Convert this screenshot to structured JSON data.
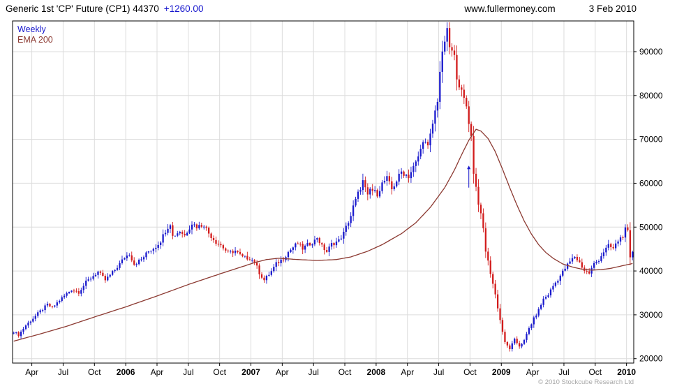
{
  "header": {
    "title": "Generic 1st 'CP' Future (CP1) 44370",
    "change": "+1260.00",
    "website": "www.fullermoney.com",
    "date": "3 Feb 2010"
  },
  "footer": {
    "copyright": "© 2010 Stockcube Research Ltd"
  },
  "chart_data": {
    "type": "candlestick",
    "title": "Generic 1st 'CP' Future (CP1)",
    "last_price": 44370,
    "change": 1260.0,
    "interval": "Weekly",
    "overlay": "EMA 200",
    "legend": [
      {
        "label": "Weekly",
        "color_key": "up"
      },
      {
        "label": "EMA 200",
        "color_key": "ema"
      }
    ],
    "ylim": [
      19000,
      97000
    ],
    "y_ticks": [
      20000,
      30000,
      40000,
      50000,
      60000,
      70000,
      80000,
      90000
    ],
    "weeks": 258,
    "x_ticks": [
      {
        "week": 8,
        "label": "Apr",
        "bold": false
      },
      {
        "week": 21,
        "label": "Jul",
        "bold": false
      },
      {
        "week": 34,
        "label": "Oct",
        "bold": false
      },
      {
        "week": 47,
        "label": "2006",
        "bold": true
      },
      {
        "week": 60,
        "label": "Apr",
        "bold": false
      },
      {
        "week": 73,
        "label": "Jul",
        "bold": false
      },
      {
        "week": 86,
        "label": "Oct",
        "bold": false
      },
      {
        "week": 99,
        "label": "2007",
        "bold": true
      },
      {
        "week": 112,
        "label": "Apr",
        "bold": false
      },
      {
        "week": 125,
        "label": "Jul",
        "bold": false
      },
      {
        "week": 138,
        "label": "Oct",
        "bold": false
      },
      {
        "week": 151,
        "label": "2008",
        "bold": true
      },
      {
        "week": 164,
        "label": "Apr",
        "bold": false
      },
      {
        "week": 177,
        "label": "Jul",
        "bold": false
      },
      {
        "week": 190,
        "label": "Oct",
        "bold": false
      },
      {
        "week": 203,
        "label": "2009",
        "bold": true
      },
      {
        "week": 216,
        "label": "Apr",
        "bold": false
      },
      {
        "week": 229,
        "label": "Jul",
        "bold": false
      },
      {
        "week": 242,
        "label": "Oct",
        "bold": false
      },
      {
        "week": 255,
        "label": "2010",
        "bold": true
      }
    ],
    "series": {
      "close_anchors": [
        [
          0,
          26200
        ],
        [
          2,
          25400
        ],
        [
          5,
          27600
        ],
        [
          8,
          29200
        ],
        [
          11,
          30800
        ],
        [
          14,
          32300
        ],
        [
          16,
          31600
        ],
        [
          19,
          33300
        ],
        [
          21,
          34300
        ],
        [
          24,
          35800
        ],
        [
          27,
          35200
        ],
        [
          30,
          37400
        ],
        [
          33,
          38900
        ],
        [
          35,
          39800
        ],
        [
          38,
          37900
        ],
        [
          41,
          39600
        ],
        [
          44,
          41600
        ],
        [
          46,
          43100
        ],
        [
          48,
          43900
        ],
        [
          50,
          41600
        ],
        [
          53,
          42600
        ],
        [
          56,
          44500
        ],
        [
          59,
          45600
        ],
        [
          61,
          46900
        ],
        [
          63,
          49200
        ],
        [
          65,
          50900
        ],
        [
          66,
          47900
        ],
        [
          69,
          49100
        ],
        [
          71,
          48100
        ],
        [
          74,
          50900
        ],
        [
          76,
          50100
        ],
        [
          79,
          50600
        ],
        [
          81,
          48600
        ],
        [
          84,
          46600
        ],
        [
          86,
          45900
        ],
        [
          89,
          44100
        ],
        [
          92,
          44600
        ],
        [
          95,
          43100
        ],
        [
          98,
          42900
        ],
        [
          100,
          42100
        ],
        [
          102,
          39600
        ],
        [
          104,
          37900
        ],
        [
          107,
          39900
        ],
        [
          109,
          41600
        ],
        [
          112,
          42900
        ],
        [
          114,
          44300
        ],
        [
          116,
          45400
        ],
        [
          118,
          46300
        ],
        [
          120,
          45100
        ],
        [
          122,
          45900
        ],
        [
          125,
          46900
        ],
        [
          126,
          47700
        ],
        [
          128,
          45600
        ],
        [
          130,
          44400
        ],
        [
          132,
          46100
        ],
        [
          135,
          46900
        ],
        [
          137,
          48600
        ],
        [
          140,
          52600
        ],
        [
          141,
          54600
        ],
        [
          143,
          57600
        ],
        [
          145,
          60400
        ],
        [
          147,
          56900
        ],
        [
          148,
          58600
        ],
        [
          151,
          57600
        ],
        [
          153,
          59900
        ],
        [
          155,
          61100
        ],
        [
          157,
          58600
        ],
        [
          159,
          60600
        ],
        [
          161,
          62600
        ],
        [
          164,
          61600
        ],
        [
          167,
          64600
        ],
        [
          169,
          67600
        ],
        [
          170,
          70100
        ],
        [
          172,
          68100
        ],
        [
          174,
          73600
        ],
        [
          176,
          79100
        ],
        [
          177,
          85600
        ],
        [
          179,
          92600
        ],
        [
          180,
          94400
        ],
        [
          181,
          91100
        ],
        [
          183,
          88600
        ],
        [
          184,
          84600
        ],
        [
          186,
          80600
        ],
        [
          188,
          77600
        ],
        [
          190,
          70600
        ],
        [
          191,
          62600
        ],
        [
          193,
          55600
        ],
        [
          195,
          49600
        ],
        [
          196,
          44600
        ],
        [
          198,
          39600
        ],
        [
          200,
          34600
        ],
        [
          202,
          28800
        ],
        [
          204,
          23600
        ],
        [
          206,
          22300
        ],
        [
          208,
          24300
        ],
        [
          210,
          22900
        ],
        [
          212,
          24100
        ],
        [
          214,
          26900
        ],
        [
          216,
          29100
        ],
        [
          218,
          31100
        ],
        [
          220,
          33600
        ],
        [
          222,
          34600
        ],
        [
          224,
          36600
        ],
        [
          226,
          38100
        ],
        [
          229,
          40600
        ],
        [
          231,
          42100
        ],
        [
          233,
          43300
        ],
        [
          235,
          41900
        ],
        [
          237,
          40100
        ],
        [
          239,
          39500
        ],
        [
          241,
          41600
        ],
        [
          243,
          42600
        ],
        [
          245,
          44400
        ],
        [
          247,
          45700
        ],
        [
          249,
          45100
        ],
        [
          251,
          46900
        ],
        [
          253,
          48100
        ],
        [
          254,
          49400
        ],
        [
          255,
          48800
        ],
        [
          256,
          43110
        ],
        [
          257,
          44370
        ]
      ],
      "ema_anchors": [
        [
          0,
          24000
        ],
        [
          10,
          25500
        ],
        [
          22,
          27400
        ],
        [
          34,
          29600
        ],
        [
          47,
          31900
        ],
        [
          60,
          34400
        ],
        [
          73,
          37000
        ],
        [
          86,
          39400
        ],
        [
          95,
          41000
        ],
        [
          100,
          41900
        ],
        [
          105,
          42600
        ],
        [
          110,
          42900
        ],
        [
          118,
          42600
        ],
        [
          126,
          42400
        ],
        [
          134,
          42600
        ],
        [
          140,
          43200
        ],
        [
          147,
          44500
        ],
        [
          153,
          46000
        ],
        [
          161,
          48500
        ],
        [
          167,
          51000
        ],
        [
          173,
          54500
        ],
        [
          179,
          59000
        ],
        [
          183,
          63000
        ],
        [
          186,
          66500
        ],
        [
          189,
          69800
        ],
        [
          192,
          72300
        ],
        [
          194,
          71900
        ],
        [
          197,
          70200
        ],
        [
          200,
          67200
        ],
        [
          203,
          63200
        ],
        [
          206,
          59000
        ],
        [
          209,
          55000
        ],
        [
          212,
          51400
        ],
        [
          215,
          48400
        ],
        [
          218,
          46000
        ],
        [
          221,
          44200
        ],
        [
          224,
          42900
        ],
        [
          228,
          41600
        ],
        [
          232,
          40900
        ],
        [
          236,
          40400
        ],
        [
          240,
          40200
        ],
        [
          244,
          40300
        ],
        [
          248,
          40600
        ],
        [
          252,
          41100
        ],
        [
          257,
          41700
        ]
      ]
    },
    "annotation": {
      "shape": "up-arrow",
      "week": 189,
      "from": 59000,
      "to": 64000,
      "color_key": "up"
    },
    "colors": {
      "up": "#1a1acd",
      "down": "#d21c1c",
      "ema": "#8c3a32",
      "grid": "#dcdcdc",
      "axis": "#000000",
      "text": "#000000",
      "copyright": "#a6a6a6",
      "background": "#ffffff",
      "change": "#1414cd"
    },
    "noise": {
      "close_pct": 0.011,
      "wick_pct": 0.02
    }
  }
}
